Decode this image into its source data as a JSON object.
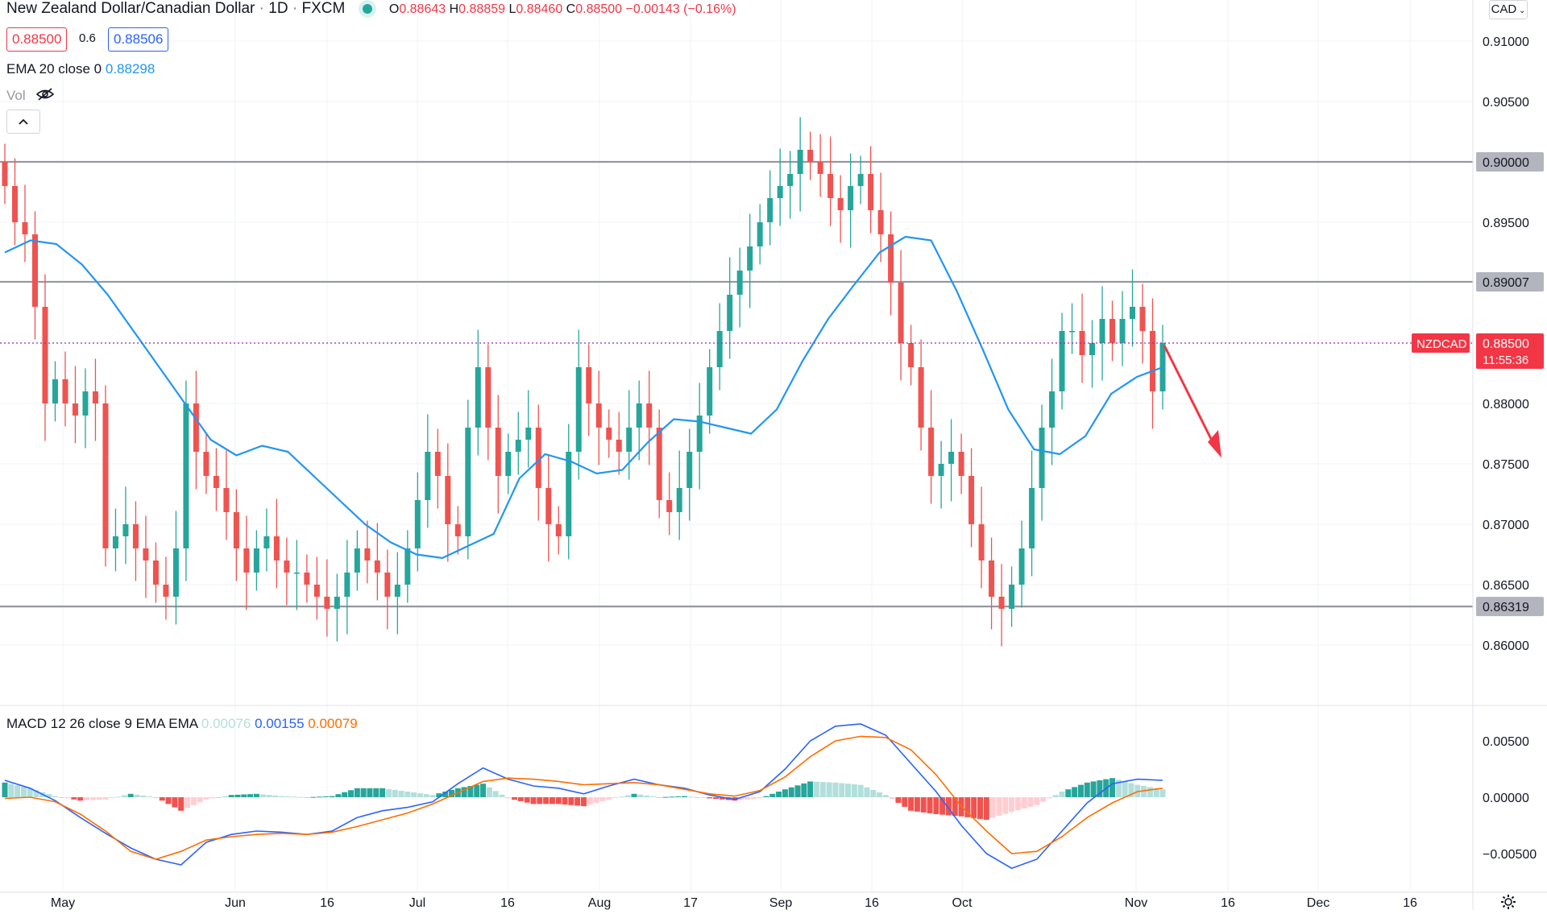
{
  "header": {
    "symbol_title": "New Zealand Dollar/Canadian Dollar",
    "interval": "1D",
    "source": "FXCM",
    "open_label": "O",
    "open": "0.88643",
    "high_label": "H",
    "high": "0.88859",
    "low_label": "L",
    "low": "0.88460",
    "close_label": "C",
    "close": "0.88500",
    "change": "−0.00143 (−0.16%)",
    "sell_price": "0.88500",
    "spread": "0.6",
    "buy_price": "0.88506",
    "currency": "CAD"
  },
  "indicators": {
    "ema_label": "EMA 20 close 0",
    "ema_value": "0.88298",
    "vol_label": "Vol",
    "macd_label": "MACD 12 26 close 9 EMA EMA",
    "macd_hist": "0.00076",
    "macd_line": "0.00155",
    "macd_signal": "0.00079"
  },
  "price_tag": {
    "symbol": "NZDCAD",
    "price": "0.88500",
    "countdown": "11:55:36"
  },
  "colors": {
    "up": "#26a69a",
    "down": "#ef5350",
    "ema": "#2196f3",
    "signal": "#ff6d00",
    "level_line": "#9598a1",
    "arrow": "#f23645",
    "grid": "#f0f3fa"
  },
  "chart_data": [
    {
      "type": "candlestick",
      "title": "New Zealand Dollar/Canadian Dollar · 1D · FXCM",
      "y_ticks": [
        0.91,
        0.905,
        0.9,
        0.895,
        0.89,
        0.885,
        0.88,
        0.875,
        0.87,
        0.865,
        0.86
      ],
      "y_tick_labels": [
        "0.91000",
        "0.90500",
        "0.90000",
        "0.89500",
        "0.89007",
        "0.88500",
        "0.88000",
        "0.87500",
        "0.87000",
        "0.86500",
        "0.86319",
        "0.86000"
      ],
      "ylim": [
        0.8555,
        0.912
      ],
      "x_tick_labels": [
        "May",
        "Jun",
        "16",
        "Jul",
        "16",
        "Aug",
        "17",
        "Sep",
        "16",
        "Oct",
        "Nov",
        "16",
        "Dec",
        "16"
      ],
      "x_tick_dates": [
        "2021-05-01",
        "2021-06-01",
        "2021-06-16",
        "2021-07-01",
        "2021-07-16",
        "2021-08-01",
        "2021-08-17",
        "2021-09-01",
        "2021-09-16",
        "2021-10-01",
        "2021-11-01",
        "2021-11-16",
        "2021-12-01",
        "2021-12-16"
      ],
      "horizontal_levels": [
        0.9,
        0.89007,
        0.86319
      ],
      "current_price": 0.885,
      "close_series_approx": [
        0.898,
        0.895,
        0.894,
        0.888,
        0.88,
        0.882,
        0.88,
        0.879,
        0.881,
        0.88,
        0.868,
        0.869,
        0.87,
        0.868,
        0.867,
        0.865,
        0.864,
        0.868,
        0.88,
        0.876,
        0.874,
        0.873,
        0.871,
        0.868,
        0.866,
        0.868,
        0.869,
        0.867,
        0.866,
        0.866,
        0.865,
        0.864,
        0.863,
        0.864,
        0.866,
        0.868,
        0.867,
        0.866,
        0.864,
        0.865,
        0.868,
        0.872,
        0.876,
        0.874,
        0.87,
        0.869,
        0.878,
        0.883,
        0.878,
        0.874,
        0.876,
        0.877,
        0.878,
        0.873,
        0.87,
        0.869,
        0.876,
        0.883,
        0.88,
        0.878,
        0.877,
        0.876,
        0.878,
        0.88,
        0.878,
        0.872,
        0.871,
        0.873,
        0.876,
        0.879,
        0.883,
        0.886,
        0.889,
        0.891,
        0.893,
        0.895,
        0.897,
        0.898,
        0.899,
        0.901,
        0.9,
        0.899,
        0.897,
        0.896,
        0.898,
        0.899,
        0.896,
        0.894,
        0.89,
        0.885,
        0.883,
        0.878,
        0.874,
        0.875,
        0.876,
        0.874,
        0.87,
        0.867,
        0.864,
        0.863,
        0.865,
        0.868,
        0.873,
        0.878,
        0.881,
        0.886,
        0.886,
        0.884,
        0.885,
        0.887,
        0.885,
        0.887,
        0.888,
        0.886,
        0.881,
        0.885
      ]
    },
    {
      "type": "line",
      "name": "EMA 20 close 0",
      "values_approx": [
        0.8925,
        0.8935,
        0.8932,
        0.8915,
        0.889,
        0.886,
        0.883,
        0.88,
        0.877,
        0.8757,
        0.8765,
        0.876,
        0.874,
        0.872,
        0.87,
        0.8685,
        0.8675,
        0.8672,
        0.8682,
        0.8692,
        0.8738,
        0.8758,
        0.8752,
        0.8742,
        0.8745,
        0.8768,
        0.8787,
        0.8785,
        0.878,
        0.8775,
        0.8795,
        0.8835,
        0.887,
        0.8898,
        0.8925,
        0.8938,
        0.8935,
        0.8893,
        0.8845,
        0.8795,
        0.8762,
        0.8758,
        0.8773,
        0.8808,
        0.8822,
        0.883
      ]
    },
    {
      "type": "line",
      "title": "MACD 12 26 close 9 EMA EMA",
      "y_ticks": [
        0.005,
        0.0,
        -0.005
      ],
      "y_tick_labels": [
        "0.00500",
        "0.00000",
        "−0.00500"
      ],
      "ylim": [
        -0.0068,
        0.0072
      ],
      "series": [
        {
          "name": "MACD",
          "values_approx": [
            0.0015,
            0.0008,
            -0.0003,
            -0.0018,
            -0.0032,
            -0.0045,
            -0.0055,
            -0.006,
            -0.004,
            -0.0033,
            -0.003,
            -0.0031,
            -0.0033,
            -0.003,
            -0.0018,
            -0.0012,
            -0.0009,
            -0.0004,
            0.0012,
            0.0026,
            0.0016,
            0.001,
            0.0008,
            0.0003,
            0.001,
            0.0016,
            0.0011,
            0.0008,
            0.0002,
            -0.0002,
            0.0005,
            0.0025,
            0.005,
            0.0063,
            0.0065,
            0.0055,
            0.003,
            0.0005,
            -0.0025,
            -0.005,
            -0.0063,
            -0.0055,
            -0.003,
            -0.0005,
            0.0012,
            0.0016,
            0.0015
          ]
        },
        {
          "name": "Signal",
          "values_approx": [
            -0.0001,
            0.0,
            -0.0004,
            -0.0015,
            -0.003,
            -0.0048,
            -0.0055,
            -0.0048,
            -0.0038,
            -0.0035,
            -0.0033,
            -0.0032,
            -0.0033,
            -0.0031,
            -0.0026,
            -0.002,
            -0.0014,
            -0.0006,
            0.0004,
            0.0014,
            0.0017,
            0.0016,
            0.0014,
            0.0011,
            0.0012,
            0.0013,
            0.0011,
            0.0007,
            0.0003,
            0.0001,
            0.0006,
            0.0018,
            0.0036,
            0.005,
            0.0054,
            0.0053,
            0.0042,
            0.002,
            -0.0008,
            -0.003,
            -0.005,
            -0.0048,
            -0.0035,
            -0.0018,
            -0.0005,
            0.0005,
            0.0008
          ]
        },
        {
          "name": "Histogram",
          "values_approx": [
            0.0013,
            0.0008,
            0.0001,
            -0.0003,
            -0.0002,
            0.0003,
            0.0,
            -0.0012,
            -0.0002,
            0.0002,
            0.0003,
            0.0001,
            0.0,
            0.0001,
            0.0008,
            0.0008,
            0.0005,
            0.0002,
            0.0008,
            0.0012,
            -0.0001,
            -0.0006,
            -0.0006,
            -0.0008,
            -0.0002,
            0.0003,
            0.0,
            0.0001,
            -0.0001,
            -0.0003,
            -0.0001,
            0.0007,
            0.0014,
            0.0013,
            0.0011,
            0.0002,
            -0.0012,
            -0.0015,
            -0.0017,
            -0.002,
            -0.0013,
            -0.0007,
            0.0005,
            0.0013,
            0.0017,
            0.0011,
            0.0007
          ]
        }
      ]
    }
  ]
}
